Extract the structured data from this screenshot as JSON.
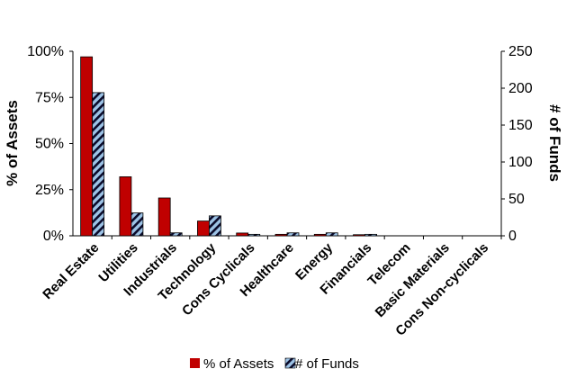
{
  "chart_data": {
    "type": "bar",
    "categories": [
      "Real Estate",
      "Utilities",
      "Industrials",
      "Technology",
      "Cons Cyclicals",
      "Healthcare",
      "Energy",
      "Financials",
      "Telecom",
      "Basic Materials",
      "Cons Non-cyclicals"
    ],
    "series": [
      {
        "name": "% of Assets",
        "axis": "left",
        "values": [
          97,
          32,
          20.5,
          8,
          1.5,
          0.8,
          0.8,
          0.6,
          0,
          0,
          0
        ],
        "color": "#C00000"
      },
      {
        "name": "# of Funds",
        "axis": "right",
        "values": [
          194,
          31,
          4,
          27,
          2,
          4,
          4,
          2,
          0,
          0,
          0
        ],
        "color": "#9DC3E6",
        "pattern": "diagonal-stripes"
      }
    ],
    "ylabel": "% of Assets",
    "y2label": "# of Funds",
    "ylim": [
      0,
      100
    ],
    "y2lim": [
      0,
      250
    ],
    "yticks": [
      "0%",
      "25%",
      "50%",
      "75%",
      "100%"
    ],
    "y2ticks": [
      "0",
      "50",
      "100",
      "150",
      "200",
      "250"
    ],
    "grid": false,
    "legend_position": "bottom"
  }
}
